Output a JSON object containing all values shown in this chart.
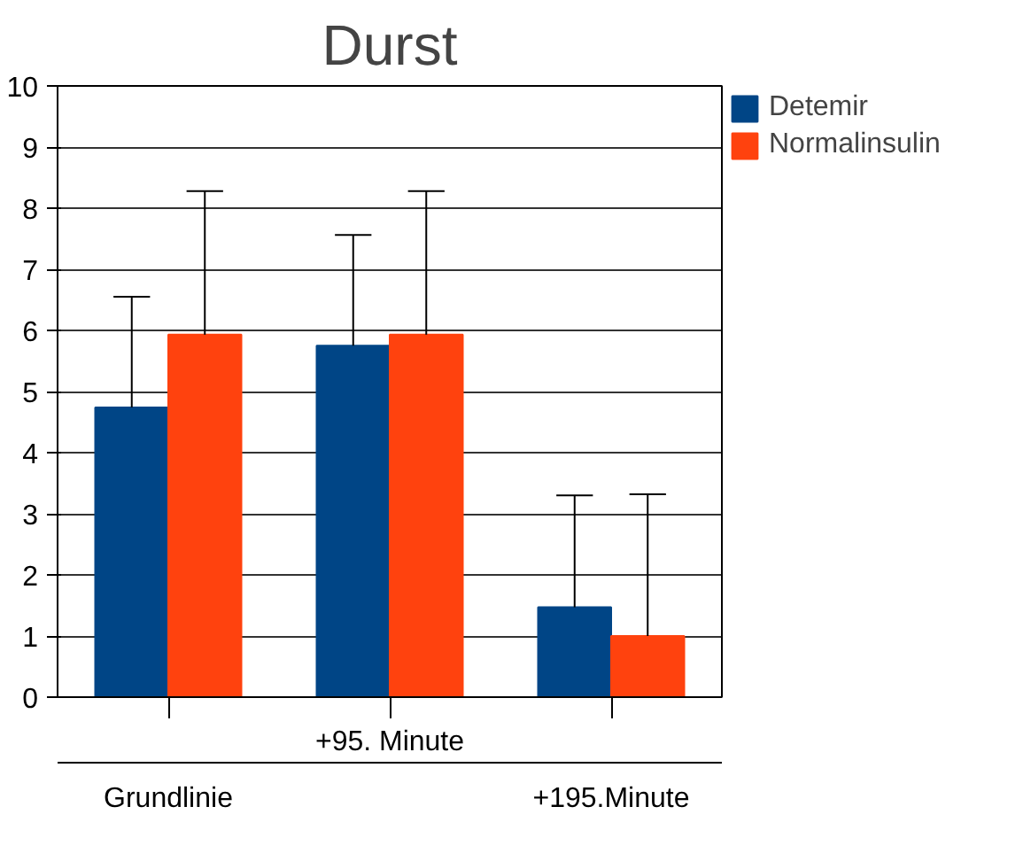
{
  "chart_data": {
    "type": "bar",
    "title": "Durst",
    "categories": [
      "Grundlinie",
      "+95. Minute",
      "+195.Minute"
    ],
    "series": [
      {
        "name": "Detemir",
        "color": "#004586",
        "values": [
          4.74,
          5.75,
          1.47
        ],
        "errors": [
          [
            4.74,
            6.55
          ],
          [
            5.75,
            7.56
          ],
          [
            1.47,
            3.3
          ]
        ]
      },
      {
        "name": "Normalinsulin",
        "color": "#ff420e",
        "values": [
          5.93,
          5.93,
          1.0
        ],
        "errors": [
          [
            5.93,
            8.28
          ],
          [
            5.93,
            8.28
          ],
          [
            1.0,
            3.32
          ]
        ]
      }
    ],
    "ylim": [
      0,
      10
    ],
    "yticks": [
      0,
      1,
      2,
      3,
      4,
      5,
      6,
      7,
      8,
      9,
      10
    ],
    "grid": "y",
    "legend": "right"
  }
}
